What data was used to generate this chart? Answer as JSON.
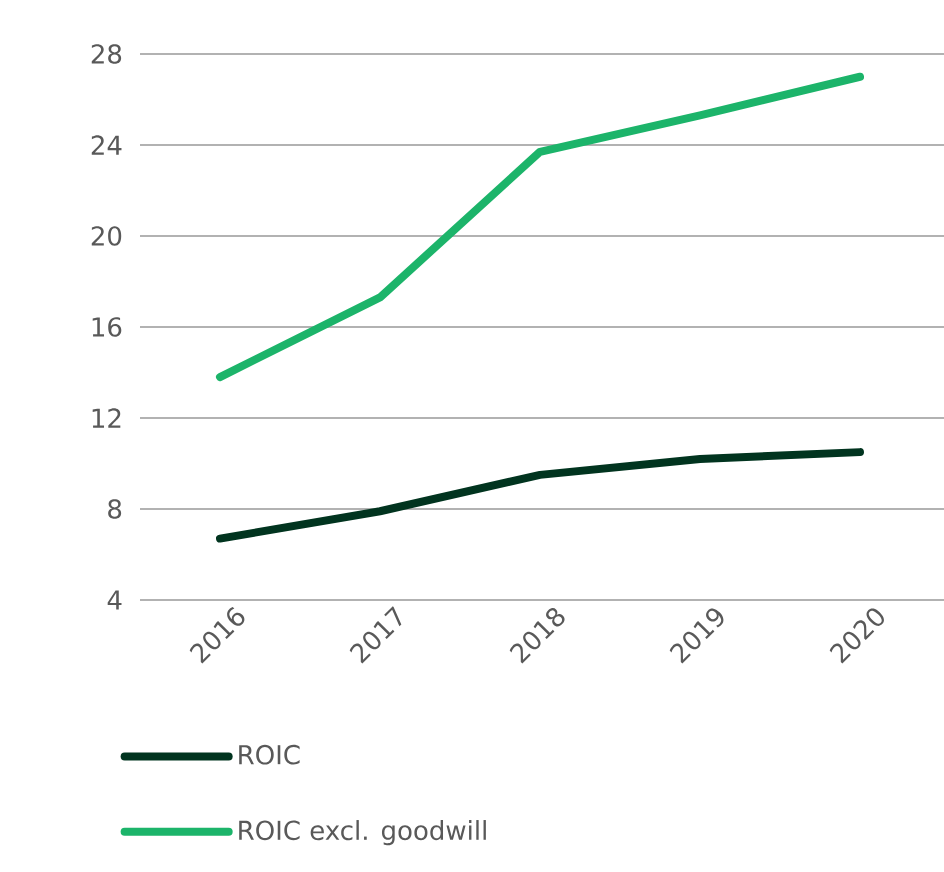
{
  "chart_data": {
    "type": "line",
    "categories": [
      "2016",
      "2017",
      "2018",
      "2019",
      "2020"
    ],
    "series": [
      {
        "name": "ROIC",
        "color": "#01341f",
        "values": [
          6.7,
          7.9,
          9.5,
          10.2,
          10.5
        ]
      },
      {
        "name": "ROIC excl. goodwill",
        "color": "#1cb46a",
        "values": [
          13.8,
          17.3,
          23.7,
          25.3,
          27.0
        ]
      }
    ],
    "ylim": [
      4,
      28
    ],
    "yticks": [
      4,
      8,
      12,
      16,
      20,
      24,
      28
    ],
    "grid": "y",
    "legend": "bottom",
    "marker": "none",
    "line_style": "solid"
  }
}
